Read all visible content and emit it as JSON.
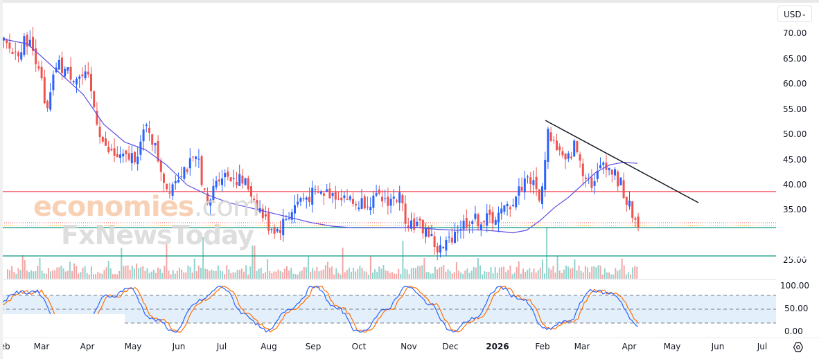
{
  "header": {
    "currency_selector": {
      "value": "USD",
      "icon": "chevron-down-icon"
    }
  },
  "price_axis": {
    "labels": [
      "70.00",
      "65.00",
      "60.00",
      "55.00",
      "50.00",
      "45.00",
      "40.00",
      "35.00",
      "25.00"
    ]
  },
  "price_tags": [
    {
      "value": "38.80",
      "color": "#f23645",
      "role": "resistance-line"
    },
    {
      "value": "32.56",
      "color": "#ef5350",
      "role": "last-price"
    },
    {
      "value": "31.70",
      "color": "#089981",
      "role": "support-line"
    },
    {
      "value": "26.08",
      "color": "#089981",
      "role": "support-line"
    }
  ],
  "oscillator_axis": {
    "labels": [
      "100.00",
      "50.00",
      "0.00"
    ]
  },
  "time_axis": {
    "labels": [
      "Feb",
      "Mar",
      "Apr",
      "May",
      "Jun",
      "Jul",
      "Aug",
      "Sep",
      "Oct",
      "Nov",
      "Dec",
      "2026",
      "Feb",
      "Mar",
      "Apr",
      "May",
      "Jun",
      "Jul"
    ]
  },
  "watermark": {
    "line1_a": "economies",
    "line1_b": ".com",
    "line2": "FxNewsToday"
  },
  "colors": {
    "up_candle": "#2962ff",
    "down_candle": "#ef5350",
    "moving_average": "#5b4ee6",
    "resistance": "#f23645",
    "support": "#089981",
    "trendline": "#131722",
    "stoch_k": "#2962ff",
    "stoch_d": "#ff6d00",
    "stoch_band": "#e3f0fc",
    "volume_up": "#8fd3cd",
    "volume_down": "#f5a6a6"
  },
  "chart_data": {
    "type": "candlestick",
    "title": "",
    "ylabel": "USD",
    "ylim": [
      24,
      72
    ],
    "x_months": [
      "Feb",
      "Mar",
      "Apr",
      "May",
      "Jun",
      "Jul",
      "Aug",
      "Sep",
      "Oct",
      "Nov",
      "Dec",
      "2026",
      "Feb",
      "Mar",
      "Apr"
    ],
    "approx_monthly_close": [
      68,
      63,
      60,
      46,
      44,
      42,
      34,
      38,
      37,
      31,
      33,
      34,
      46,
      43,
      32.56
    ],
    "horizontal_levels": [
      38.8,
      31.7,
      26.08
    ],
    "last_price": 32.56,
    "moving_average": {
      "start": 69,
      "mid_low": 31.5,
      "end": 43
    },
    "trendline": {
      "from": {
        "month": "Feb 2026",
        "value": 53
      },
      "to": {
        "month": "May 2026",
        "value": 37
      }
    },
    "indicators": [
      {
        "name": "Volume",
        "type": "bar"
      },
      {
        "name": "Stochastic",
        "ylim": [
          0,
          100
        ],
        "bands": [
          20,
          50,
          80
        ]
      }
    ]
  }
}
